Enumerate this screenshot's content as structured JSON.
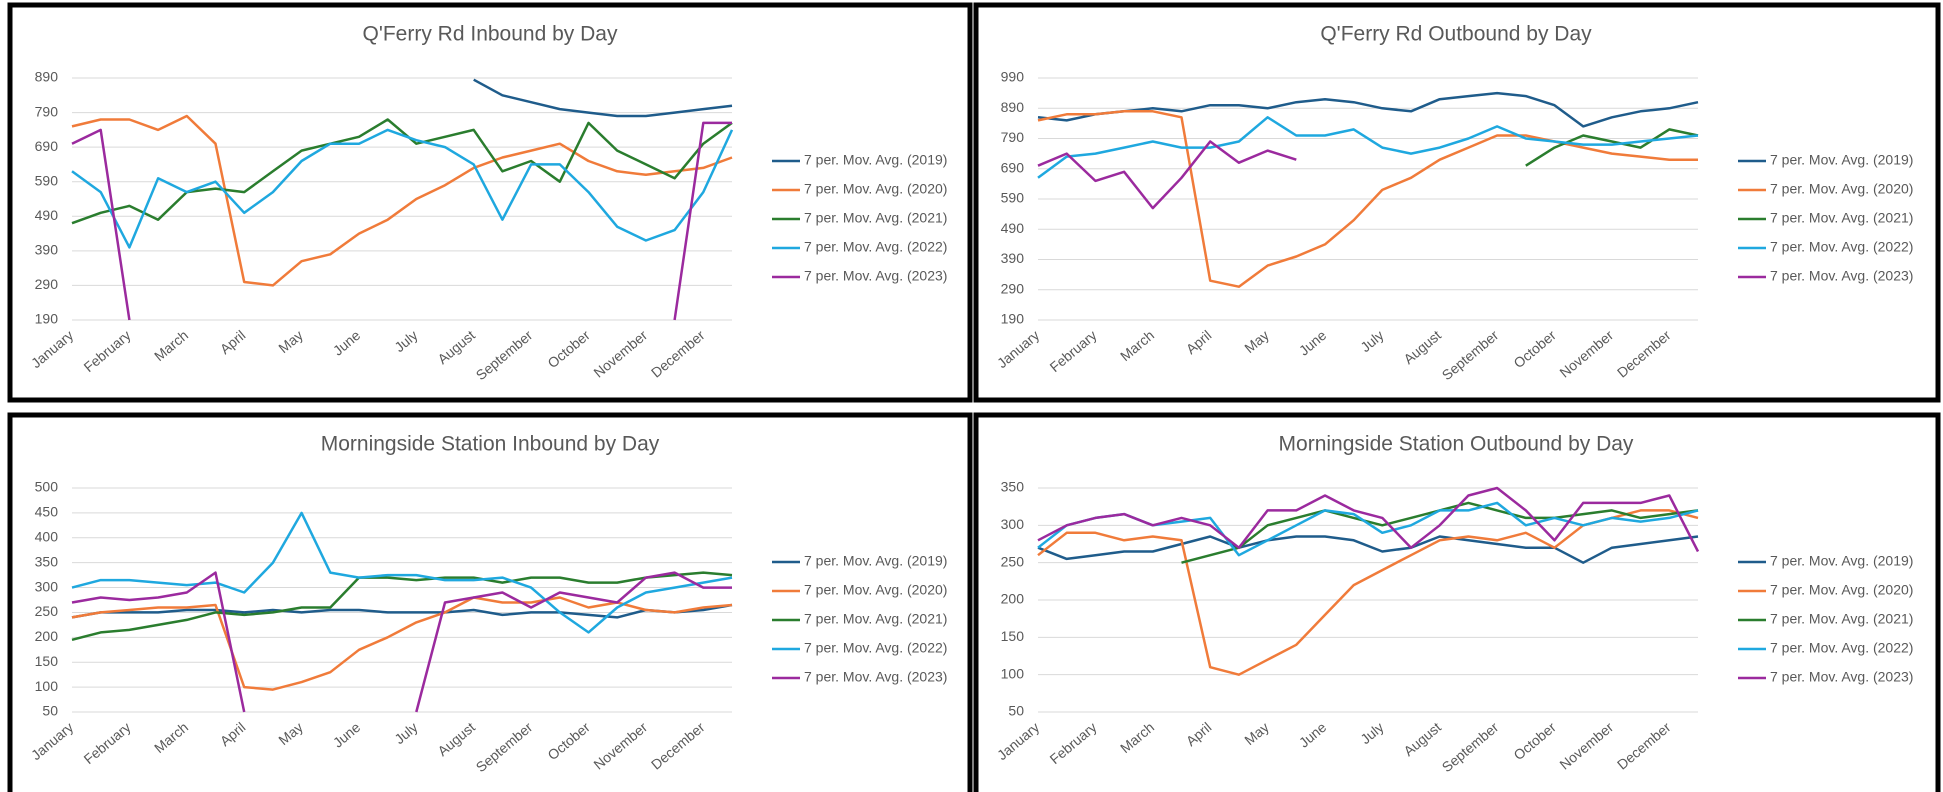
{
  "chart_data": [
    {
      "type": "line",
      "title": "Q'Ferry Rd Inbound by Day",
      "categories": [
        "January",
        null,
        "February",
        null,
        "March",
        null,
        "April",
        null,
        "May",
        null,
        "June",
        null,
        "July",
        null,
        "August",
        null,
        "September",
        null,
        "October",
        null,
        "November",
        null,
        "December",
        null
      ],
      "ylim": [
        190,
        890
      ],
      "yticks": [
        190,
        290,
        390,
        490,
        590,
        690,
        790,
        890
      ],
      "grid": true,
      "legend": "right",
      "series": [
        {
          "name": "7 per. Mov. Avg. (2019)",
          "color": "#1f5c8b",
          "values": [
            null,
            null,
            null,
            null,
            null,
            null,
            null,
            null,
            null,
            null,
            null,
            null,
            null,
            null,
            885,
            840,
            820,
            800,
            790,
            780,
            780,
            790,
            800,
            810
          ]
        },
        {
          "name": "7 per. Mov. Avg. (2020)",
          "color": "#f07b3a",
          "values": [
            750,
            770,
            770,
            740,
            780,
            700,
            300,
            290,
            360,
            380,
            440,
            480,
            540,
            580,
            630,
            660,
            680,
            700,
            650,
            620,
            610,
            620,
            630,
            660
          ]
        },
        {
          "name": "7 per. Mov. Avg. (2021)",
          "color": "#2a7d2e",
          "values": [
            470,
            500,
            520,
            480,
            560,
            570,
            560,
            620,
            680,
            700,
            720,
            770,
            700,
            720,
            740,
            620,
            650,
            590,
            760,
            680,
            640,
            600,
            700,
            760
          ]
        },
        {
          "name": "7 per. Mov. Avg. (2022)",
          "color": "#1fa8df",
          "values": [
            620,
            560,
            400,
            600,
            560,
            590,
            500,
            560,
            650,
            700,
            700,
            740,
            710,
            690,
            640,
            480,
            640,
            640,
            560,
            460,
            420,
            450,
            560,
            740
          ]
        },
        {
          "name": "7 per. Mov. Avg. (2023)",
          "color": "#9b2a9e",
          "values": [
            700,
            740,
            190,
            null,
            null,
            null,
            null,
            null,
            null,
            null,
            null,
            null,
            null,
            null,
            null,
            null,
            null,
            null,
            null,
            null,
            null,
            190,
            760,
            760
          ]
        }
      ]
    },
    {
      "type": "line",
      "title": "Q'Ferry Rd Outbound by Day",
      "categories": [
        "January",
        null,
        "February",
        null,
        "March",
        null,
        "April",
        null,
        "May",
        null,
        "June",
        null,
        "July",
        null,
        "August",
        null,
        "September",
        null,
        "October",
        null,
        "November",
        null,
        "December",
        null
      ],
      "ylim": [
        190,
        990
      ],
      "yticks": [
        190,
        290,
        390,
        490,
        590,
        690,
        790,
        890,
        990
      ],
      "grid": true,
      "legend": "right",
      "series": [
        {
          "name": "7 per. Mov. Avg. (2019)",
          "color": "#1f5c8b",
          "values": [
            860,
            850,
            870,
            880,
            890,
            880,
            900,
            900,
            890,
            910,
            920,
            910,
            890,
            880,
            920,
            930,
            940,
            930,
            900,
            830,
            860,
            880,
            890,
            910
          ]
        },
        {
          "name": "7 per. Mov. Avg. (2020)",
          "color": "#f07b3a",
          "values": [
            850,
            870,
            870,
            880,
            880,
            860,
            320,
            300,
            370,
            400,
            440,
            520,
            620,
            660,
            720,
            760,
            800,
            800,
            780,
            760,
            740,
            730,
            720,
            720
          ]
        },
        {
          "name": "7 per. Mov. Avg. (2021)",
          "color": "#2a7d2e",
          "values": [
            null,
            null,
            null,
            null,
            null,
            null,
            null,
            null,
            null,
            null,
            null,
            null,
            null,
            null,
            null,
            null,
            null,
            700,
            760,
            800,
            780,
            760,
            820,
            800
          ]
        },
        {
          "name": "7 per. Mov. Avg. (2022)",
          "color": "#1fa8df",
          "values": [
            660,
            730,
            740,
            760,
            780,
            760,
            760,
            780,
            860,
            800,
            800,
            820,
            760,
            740,
            760,
            790,
            830,
            790,
            780,
            770,
            770,
            780,
            790,
            800
          ]
        },
        {
          "name": "7 per. Mov. Avg. (2023)",
          "color": "#9b2a9e",
          "values": [
            700,
            740,
            650,
            680,
            560,
            660,
            780,
            710,
            750,
            720,
            null,
            null,
            null,
            null,
            null,
            null,
            null,
            null,
            null,
            null,
            null,
            null,
            null,
            null
          ]
        }
      ]
    },
    {
      "type": "line",
      "title": "Morningside Station Inbound by Day",
      "categories": [
        "January",
        null,
        "February",
        null,
        "March",
        null,
        "April",
        null,
        "May",
        null,
        "June",
        null,
        "July",
        null,
        "August",
        null,
        "September",
        null,
        "October",
        null,
        "November",
        null,
        "December",
        null
      ],
      "ylim": [
        50,
        500
      ],
      "yticks": [
        50,
        100,
        150,
        200,
        250,
        300,
        350,
        400,
        450,
        500
      ],
      "grid": true,
      "legend": "right",
      "series": [
        {
          "name": "7 per. Mov. Avg. (2019)",
          "color": "#1f5c8b",
          "values": [
            240,
            250,
            250,
            250,
            255,
            255,
            250,
            255,
            250,
            255,
            255,
            250,
            250,
            250,
            255,
            245,
            250,
            250,
            245,
            240,
            255,
            250,
            255,
            265
          ]
        },
        {
          "name": "7 per. Mov. Avg. (2020)",
          "color": "#f07b3a",
          "values": [
            240,
            250,
            255,
            260,
            260,
            265,
            100,
            95,
            110,
            130,
            175,
            200,
            230,
            250,
            280,
            270,
            270,
            280,
            260,
            270,
            255,
            250,
            260,
            265
          ]
        },
        {
          "name": "7 per. Mov. Avg. (2021)",
          "color": "#2a7d2e",
          "values": [
            195,
            210,
            215,
            225,
            235,
            250,
            245,
            250,
            260,
            260,
            320,
            320,
            315,
            320,
            320,
            310,
            320,
            320,
            310,
            310,
            320,
            325,
            330,
            325
          ]
        },
        {
          "name": "7 per. Mov. Avg. (2022)",
          "color": "#1fa8df",
          "values": [
            300,
            315,
            315,
            310,
            305,
            310,
            290,
            350,
            450,
            330,
            320,
            325,
            325,
            315,
            315,
            320,
            300,
            250,
            210,
            260,
            290,
            300,
            310,
            320
          ]
        },
        {
          "name": "7 per. Mov. Avg. (2023)",
          "color": "#9b2a9e",
          "values": [
            270,
            280,
            275,
            280,
            290,
            330,
            50,
            null,
            null,
            null,
            null,
            null,
            50,
            270,
            280,
            290,
            260,
            290,
            280,
            270,
            320,
            330,
            300,
            300
          ]
        }
      ]
    },
    {
      "type": "line",
      "title": "Morningside Station Outbound by Day",
      "categories": [
        "January",
        null,
        "February",
        null,
        "March",
        null,
        "April",
        null,
        "May",
        null,
        "June",
        null,
        "July",
        null,
        "August",
        null,
        "September",
        null,
        "October",
        null,
        "November",
        null,
        "December",
        null
      ],
      "ylim": [
        50,
        350
      ],
      "yticks": [
        50,
        100,
        150,
        200,
        250,
        300,
        350
      ],
      "grid": true,
      "legend": "right",
      "series": [
        {
          "name": "7 per. Mov. Avg. (2019)",
          "color": "#1f5c8b",
          "values": [
            270,
            255,
            260,
            265,
            265,
            275,
            285,
            270,
            280,
            285,
            285,
            280,
            265,
            270,
            285,
            280,
            275,
            270,
            270,
            250,
            270,
            275,
            280,
            285
          ]
        },
        {
          "name": "7 per. Mov. Avg. (2020)",
          "color": "#f07b3a",
          "values": [
            260,
            290,
            290,
            280,
            285,
            280,
            110,
            100,
            120,
            140,
            180,
            220,
            240,
            260,
            280,
            285,
            280,
            290,
            270,
            300,
            310,
            320,
            320,
            310
          ]
        },
        {
          "name": "7 per. Mov. Avg. (2021)",
          "color": "#2a7d2e",
          "values": [
            null,
            null,
            null,
            null,
            null,
            250,
            260,
            270,
            300,
            310,
            320,
            310,
            300,
            310,
            320,
            330,
            320,
            310,
            310,
            315,
            320,
            310,
            315,
            320
          ]
        },
        {
          "name": "7 per. Mov. Avg. (2022)",
          "color": "#1fa8df",
          "values": [
            270,
            300,
            310,
            315,
            300,
            305,
            310,
            260,
            280,
            300,
            320,
            315,
            290,
            300,
            320,
            320,
            330,
            300,
            310,
            300,
            310,
            305,
            310,
            320
          ]
        },
        {
          "name": "7 per. Mov. Avg. (2023)",
          "color": "#9b2a9e",
          "values": [
            280,
            300,
            310,
            315,
            300,
            310,
            300,
            270,
            320,
            320,
            340,
            320,
            310,
            270,
            300,
            340,
            350,
            320,
            280,
            330,
            330,
            330,
            340,
            265
          ]
        }
      ]
    }
  ]
}
